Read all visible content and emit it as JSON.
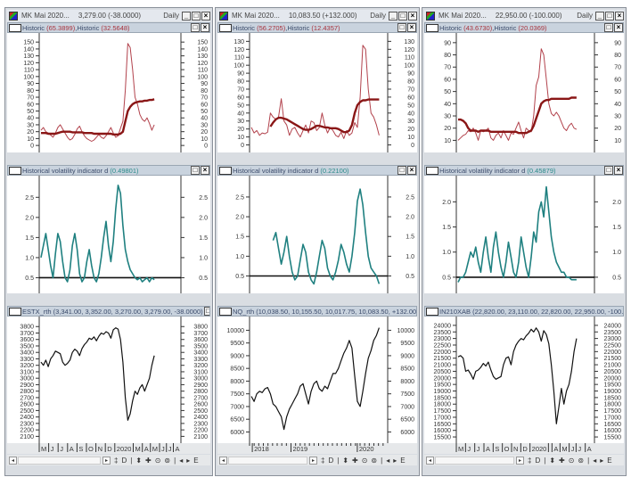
{
  "colors": {
    "historic_thin": "#b2424c",
    "historic_thick": "#8a1616",
    "volatility": "#1f8080",
    "price": "#111111",
    "baseline": "#111111",
    "header_bg": "#c9d3de"
  },
  "windows": [
    {
      "title": "MK Mai 2020...",
      "quote": "3,279.00 (-38.0000)",
      "period": "Daily",
      "panes": [
        {
          "name1": "Historic",
          "val1": "(65.3899)",
          "sep": ", ",
          "name2": "Historic",
          "val2": "(32.5648)",
          "value_color": "red"
        },
        {
          "name1": "Historical volatility indicator d",
          "val1": "(0.49801)",
          "sep": "",
          "name2": "",
          "val2": "",
          "value_color": "teal"
        },
        {
          "name1": "ESTX_rth (3,341.00, 3,352.00, 3,270.00, 3,279.00, -38.0000)",
          "val1": "",
          "sep": "",
          "name2": "",
          "val2": "",
          "value_color": "none"
        }
      ],
      "x_labels": [
        "M",
        "J",
        "J",
        "A",
        "S",
        "O",
        "N",
        "D",
        "2020",
        "M",
        "A",
        "M",
        "J",
        "J",
        "A"
      ]
    },
    {
      "title": "MK Mai 2020...",
      "quote": "10,083.50 (+132.000)",
      "period": "Daily",
      "panes": [
        {
          "name1": "Historic",
          "val1": "(56.2705)",
          "sep": ", ",
          "name2": "Historic",
          "val2": "(12.4357)",
          "value_color": "red"
        },
        {
          "name1": "Historical volatility indicator d",
          "val1": "(0.22100)",
          "sep": "",
          "name2": "",
          "val2": "",
          "value_color": "teal"
        },
        {
          "name1": "NQ_rth (10,038.50, 10,155.50, 10,017.75, 10,083.50, +132.000)",
          "val1": "",
          "sep": "",
          "name2": "",
          "val2": "",
          "value_color": "none"
        }
      ],
      "x_labels": [
        "2018",
        "2019",
        "2020"
      ]
    },
    {
      "title": "MK Mai 2020...",
      "quote": "22,950.00 (-100.000)",
      "period": "Daily",
      "panes": [
        {
          "name1": "Historic",
          "val1": "(43.6730)",
          "sep": ", ",
          "name2": "Historic",
          "val2": "(20.0369)",
          "value_color": "red"
        },
        {
          "name1": "Historical volatility indicator d",
          "val1": "(0.45879)",
          "sep": "",
          "name2": "",
          "val2": "",
          "value_color": "teal"
        },
        {
          "name1": "IN210XAB (22,820.00, 23,110.00, 22,820.00, 22,950.00, -100.000)",
          "val1": "",
          "sep": "",
          "name2": "",
          "val2": "",
          "value_color": "none"
        }
      ],
      "x_labels": [
        "M",
        "J",
        "J",
        "A",
        "S",
        "O",
        "N",
        "D",
        "2020",
        "",
        "A",
        "M",
        "J",
        "J",
        "A"
      ]
    }
  ],
  "toolbar": {
    "scroll_left": "◂",
    "scroll_right": "▸",
    "tools": [
      "‡",
      "D",
      "|",
      "⬍",
      "✚",
      "⊙",
      "⊚",
      "|",
      "◂",
      "▸",
      "E"
    ]
  },
  "window_buttons": {
    "minimize": "_",
    "maximize": "□",
    "close": "×"
  },
  "chart_data": [
    {
      "type": "line",
      "window": 0,
      "pane": "historic",
      "ylim": [
        -5,
        158
      ],
      "yticks": [
        0,
        10,
        20,
        30,
        40,
        50,
        60,
        70,
        80,
        90,
        100,
        110,
        120,
        130,
        140,
        150
      ],
      "series": [
        {
          "style": "thin",
          "values": [
            22,
            26,
            20,
            18,
            15,
            12,
            18,
            26,
            30,
            24,
            18,
            12,
            8,
            10,
            16,
            24,
            28,
            20,
            14,
            10,
            8,
            6,
            8,
            12,
            16,
            12,
            10,
            14,
            20,
            26,
            18,
            12,
            14,
            25,
            35,
            80,
            148,
            142,
            110,
            70,
            60,
            45,
            38,
            35,
            40,
            32,
            22,
            30
          ]
        },
        {
          "style": "thick",
          "values": [
            18,
            18,
            18,
            17,
            17,
            17,
            17,
            18,
            19,
            20,
            20,
            20,
            20,
            19,
            19,
            19,
            19,
            19,
            18,
            18,
            18,
            18,
            17,
            17,
            17,
            17,
            17,
            17,
            17,
            17,
            16,
            16,
            16,
            17,
            20,
            35,
            50,
            56,
            60,
            62,
            63,
            64,
            64,
            65,
            65,
            66,
            66,
            67
          ]
        }
      ]
    },
    {
      "type": "line",
      "window": 0,
      "pane": "volatility",
      "ylim": [
        0.2,
        2.95
      ],
      "yticks": [
        0.5,
        1.0,
        1.5,
        2.0,
        2.5
      ],
      "baseline": 0.5,
      "series": [
        {
          "style": "vol",
          "values": [
            1.0,
            1.3,
            1.6,
            1.2,
            0.8,
            0.5,
            1.1,
            1.6,
            1.4,
            0.9,
            0.5,
            0.4,
            0.7,
            1.3,
            1.6,
            1.2,
            0.6,
            0.4,
            0.5,
            0.9,
            1.2,
            0.8,
            0.5,
            0.4,
            0.6,
            1.0,
            1.5,
            1.9,
            1.3,
            0.9,
            1.4,
            2.2,
            2.8,
            2.6,
            1.8,
            1.2,
            0.9,
            0.7,
            0.6,
            0.5,
            0.45,
            0.5,
            0.4,
            0.45,
            0.5,
            0.4,
            0.5,
            0.45
          ]
        }
      ]
    },
    {
      "type": "line",
      "window": 0,
      "pane": "price",
      "ylim": [
        2050,
        3900
      ],
      "yticks": [
        2100,
        2200,
        2300,
        2400,
        2500,
        2600,
        2700,
        2800,
        2900,
        3000,
        3100,
        3200,
        3300,
        3400,
        3500,
        3600,
        3700,
        3800
      ],
      "series": [
        {
          "style": "price",
          "values": [
            3250,
            3200,
            3280,
            3180,
            3300,
            3350,
            3420,
            3400,
            3380,
            3250,
            3200,
            3230,
            3280,
            3400,
            3450,
            3420,
            3350,
            3460,
            3520,
            3560,
            3620,
            3600,
            3640,
            3580,
            3650,
            3700,
            3680,
            3720,
            3700,
            3620,
            3750,
            3780,
            3760,
            3600,
            3250,
            2700,
            2350,
            2450,
            2650,
            2800,
            2750,
            2850,
            2900,
            2800,
            2900,
            3000,
            3200,
            3350
          ]
        }
      ]
    },
    {
      "type": "line",
      "window": 1,
      "pane": "historic",
      "ylim": [
        -5,
        136
      ],
      "yticks": [
        0,
        10,
        20,
        30,
        40,
        50,
        60,
        70,
        80,
        90,
        100,
        110,
        120,
        130
      ],
      "series": [
        {
          "style": "thin",
          "values": [
            22,
            15,
            18,
            12,
            15,
            14,
            16,
            40,
            35,
            32,
            35,
            58,
            30,
            25,
            12,
            20,
            22,
            15,
            10,
            18,
            25,
            15,
            30,
            28,
            18,
            22,
            40,
            25,
            15,
            22,
            18,
            12,
            10,
            16,
            8,
            18,
            12,
            15,
            28,
            22,
            60,
            125,
            120,
            70,
            40,
            35,
            25,
            12
          ]
        },
        {
          "style": "thick",
          "values": [
            null,
            null,
            null,
            null,
            null,
            null,
            null,
            23,
            28,
            32,
            34,
            34,
            33,
            32,
            30,
            28,
            26,
            24,
            22,
            20,
            19,
            19,
            20,
            22,
            24,
            24,
            23,
            22,
            22,
            21,
            21,
            21,
            20,
            18,
            16,
            16,
            18,
            25,
            40,
            50,
            54,
            56,
            56,
            57,
            57,
            57,
            57,
            57
          ]
        }
      ]
    },
    {
      "type": "line",
      "window": 1,
      "pane": "volatility",
      "ylim": [
        0.15,
        2.95
      ],
      "yticks": [
        0.5,
        1.0,
        1.5,
        2.0,
        2.5
      ],
      "baseline": 0.5,
      "series": [
        {
          "style": "vol",
          "values": [
            null,
            null,
            null,
            null,
            null,
            null,
            null,
            null,
            1.4,
            1.6,
            1.2,
            0.8,
            1.1,
            1.5,
            1.0,
            0.6,
            0.4,
            0.5,
            0.9,
            1.3,
            1.1,
            0.6,
            0.4,
            0.3,
            0.6,
            1.0,
            1.4,
            1.2,
            0.7,
            0.5,
            0.4,
            0.6,
            0.9,
            1.3,
            1.1,
            0.8,
            0.6,
            1.0,
            1.6,
            2.4,
            2.7,
            2.3,
            1.6,
            1.0,
            0.7,
            0.6,
            0.5,
            0.3
          ]
        }
      ]
    },
    {
      "type": "line",
      "window": 1,
      "pane": "price",
      "ylim": [
        5700,
        10400
      ],
      "yticks": [
        6000,
        6500,
        7000,
        7500,
        8000,
        8500,
        9000,
        9500,
        10000
      ],
      "series": [
        {
          "style": "price",
          "values": [
            7400,
            7200,
            7500,
            7600,
            7550,
            7700,
            7750,
            7500,
            7100,
            7000,
            6800,
            6600,
            6100,
            6600,
            6900,
            7100,
            7300,
            7500,
            7800,
            7900,
            7500,
            7100,
            7600,
            7900,
            8000,
            7700,
            7600,
            7800,
            7700,
            8000,
            8300,
            8300,
            8500,
            8800,
            9100,
            9300,
            9600,
            9300,
            8200,
            7200,
            7000,
            7600,
            8300,
            8900,
            9200,
            9600,
            9800,
            10100
          ]
        }
      ]
    },
    {
      "type": "line",
      "window": 2,
      "pane": "historic",
      "ylim": [
        3,
        95
      ],
      "yticks": [
        10,
        20,
        30,
        40,
        50,
        60,
        70,
        80,
        90
      ],
      "series": [
        {
          "style": "thin",
          "values": [
            10,
            12,
            14,
            15,
            18,
            17,
            20,
            16,
            10,
            18,
            17,
            18,
            20,
            12,
            10,
            14,
            16,
            12,
            18,
            14,
            10,
            16,
            15,
            20,
            25,
            18,
            12,
            20,
            18,
            17,
            30,
            55,
            62,
            85,
            80,
            60,
            40,
            32,
            30,
            33,
            30,
            25,
            20,
            18,
            22,
            24,
            20,
            19
          ]
        },
        {
          "style": "thick",
          "values": [
            27,
            27,
            26,
            24,
            20,
            18,
            18,
            18,
            17,
            18,
            18,
            18,
            18,
            17,
            17,
            17,
            17,
            17,
            17,
            17,
            17,
            17,
            17,
            17,
            16,
            16,
            16,
            16,
            17,
            18,
            22,
            28,
            34,
            40,
            42,
            43,
            43,
            44,
            44,
            44,
            44,
            44,
            44,
            44,
            44,
            45,
            45,
            45
          ]
        }
      ]
    },
    {
      "type": "line",
      "window": 2,
      "pane": "volatility",
      "ylim": [
        0.25,
        2.45
      ],
      "yticks": [
        0.5,
        1.0,
        1.5,
        2.0
      ],
      "baseline": 0.5,
      "series": [
        {
          "style": "vol",
          "values": [
            0.4,
            0.5,
            0.5,
            0.6,
            0.8,
            1.0,
            0.9,
            1.1,
            0.8,
            0.6,
            1.0,
            1.3,
            0.9,
            0.6,
            1.1,
            1.4,
            1.0,
            0.7,
            0.5,
            0.8,
            1.2,
            0.9,
            0.6,
            0.5,
            0.8,
            1.3,
            1.0,
            0.7,
            0.5,
            0.9,
            1.4,
            1.2,
            1.8,
            2.0,
            1.7,
            2.3,
            1.8,
            1.3,
            1.0,
            0.8,
            0.7,
            0.6,
            0.6,
            0.5,
            0.5,
            0.45,
            0.45,
            0.45
          ]
        }
      ]
    },
    {
      "type": "line",
      "window": 2,
      "pane": "price",
      "ylim": [
        15300,
        24400
      ],
      "yticks": [
        15500,
        16000,
        16500,
        17000,
        17500,
        18000,
        18500,
        19000,
        19500,
        20000,
        20500,
        21000,
        21500,
        22000,
        22500,
        23000,
        23500,
        24000
      ],
      "series": [
        {
          "style": "price",
          "values": [
            21600,
            21700,
            21500,
            20500,
            20600,
            20300,
            19900,
            20500,
            20600,
            20800,
            21100,
            20900,
            21200,
            20600,
            20100,
            19900,
            20000,
            20100,
            21000,
            21500,
            21600,
            21000,
            22000,
            22500,
            22800,
            23000,
            22900,
            23200,
            23400,
            23700,
            23500,
            23800,
            23500,
            22800,
            23600,
            23300,
            22600,
            21000,
            19000,
            16500,
            17800,
            19200,
            18000,
            19000,
            19500,
            20500,
            22000,
            23000
          ]
        }
      ]
    }
  ]
}
